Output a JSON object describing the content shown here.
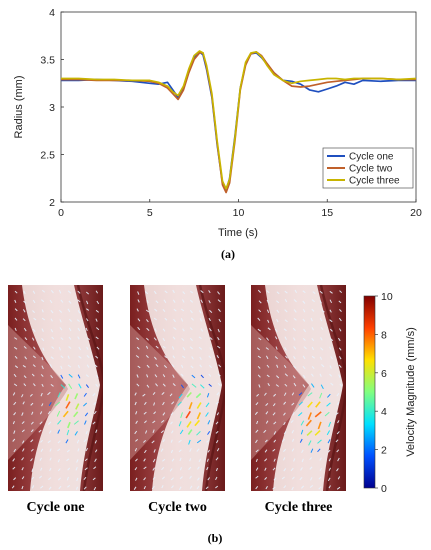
{
  "chart_data": [
    {
      "type": "line",
      "panel_label": "(a)",
      "xlabel": "Time (s)",
      "ylabel": "Radius (mm)",
      "xlim": [
        0,
        20
      ],
      "ylim": [
        2,
        4
      ],
      "xticks": [
        "0",
        "5",
        "10",
        "15",
        "20"
      ],
      "yticks": [
        "2",
        "2.5",
        "3",
        "3.5",
        "4"
      ],
      "legend_position": "bottom-right",
      "grid": false,
      "x": [
        0,
        1,
        2,
        3,
        4,
        5,
        5.5,
        6,
        6.3,
        6.6,
        6.9,
        7.2,
        7.5,
        7.8,
        8.0,
        8.2,
        8.5,
        8.8,
        9.1,
        9.3,
        9.5,
        9.8,
        10.1,
        10.4,
        10.7,
        11.0,
        11.3,
        11.6,
        12.0,
        12.5,
        13.0,
        13.5,
        14,
        14.5,
        15,
        15.5,
        16,
        16.5,
        17,
        18,
        19,
        20
      ],
      "series": [
        {
          "name": "Cycle one",
          "color": "#1f4fbf",
          "values": [
            3.28,
            3.28,
            3.29,
            3.28,
            3.27,
            3.25,
            3.24,
            3.26,
            3.18,
            3.1,
            3.2,
            3.38,
            3.52,
            3.58,
            3.55,
            3.4,
            3.1,
            2.6,
            2.2,
            2.12,
            2.25,
            2.7,
            3.2,
            3.45,
            3.56,
            3.57,
            3.52,
            3.45,
            3.36,
            3.28,
            3.27,
            3.24,
            3.18,
            3.16,
            3.19,
            3.22,
            3.26,
            3.24,
            3.28,
            3.27,
            3.28,
            3.28
          ]
        },
        {
          "name": "Cycle two",
          "color": "#c0602a",
          "values": [
            3.29,
            3.29,
            3.28,
            3.28,
            3.28,
            3.27,
            3.25,
            3.2,
            3.14,
            3.08,
            3.18,
            3.36,
            3.5,
            3.57,
            3.57,
            3.42,
            3.12,
            2.62,
            2.18,
            2.1,
            2.2,
            2.65,
            3.18,
            3.44,
            3.56,
            3.58,
            3.54,
            3.46,
            3.36,
            3.28,
            3.22,
            3.21,
            3.22,
            3.24,
            3.26,
            3.27,
            3.28,
            3.29,
            3.3,
            3.3,
            3.29,
            3.29
          ]
        },
        {
          "name": "Cycle three",
          "color": "#c8b400",
          "values": [
            3.3,
            3.3,
            3.29,
            3.29,
            3.28,
            3.28,
            3.26,
            3.22,
            3.16,
            3.12,
            3.22,
            3.4,
            3.54,
            3.59,
            3.57,
            3.44,
            3.14,
            2.64,
            2.22,
            2.14,
            2.24,
            2.68,
            3.2,
            3.47,
            3.57,
            3.58,
            3.53,
            3.44,
            3.34,
            3.28,
            3.25,
            3.27,
            3.28,
            3.29,
            3.3,
            3.3,
            3.29,
            3.3,
            3.3,
            3.3,
            3.29,
            3.3
          ]
        }
      ]
    },
    {
      "type": "heatmap",
      "panel_label": "(b)",
      "colorbar_label": "Velocity Magnitude (mm/s)",
      "colorbar_range": [
        0,
        10
      ],
      "colorbar_ticks": [
        "0",
        "2",
        "4",
        "6",
        "8",
        "10"
      ],
      "colormap": [
        "#00008f",
        "#0050ff",
        "#00e0ff",
        "#80ff80",
        "#ffe000",
        "#ff4000",
        "#800000"
      ],
      "panels": [
        {
          "caption": "Cycle one"
        },
        {
          "caption": "Cycle two"
        },
        {
          "caption": "Cycle three"
        }
      ]
    }
  ]
}
